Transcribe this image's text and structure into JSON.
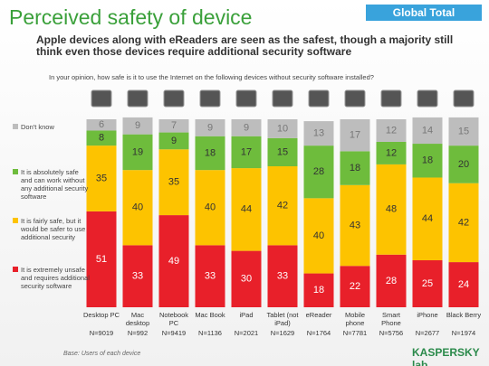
{
  "header": {
    "badge": "Global Total",
    "title": "Perceived safety of device",
    "subtitle": "Apple devices along with eReaders are seen as the safest, though a majority still think even those devices require additional security software",
    "question": "In your opinion, how safe is it to use the Internet on the following devices without security software installed?"
  },
  "footer": {
    "base": "Base: Users of each device",
    "logo": "KASPERSKY lab"
  },
  "chart_data": {
    "type": "stacked-bar",
    "categories": [
      "Desktop PC",
      "Mac desktop",
      "Notebook PC",
      "Mac Book",
      "iPad",
      "Tablet (not iPad)",
      "eReader",
      "Mobile phone",
      "Smart Phone",
      "iPhone",
      "Black Berry"
    ],
    "sample_sizes": [
      "N=9019",
      "N=992",
      "N=9419",
      "N=1136",
      "N=2021",
      "N=1629",
      "N=1764",
      "N=7781",
      "N=5756",
      "N=2677",
      "N=1974"
    ],
    "ylim": [
      0,
      100
    ],
    "series": [
      {
        "name": "It is extremely unsafe and requires additional security software",
        "color": "#e8202a",
        "values": [
          51,
          33,
          49,
          33,
          30,
          33,
          18,
          22,
          28,
          25,
          24
        ]
      },
      {
        "name": "It is fairly safe, but it would be safer to use additional security",
        "color": "#fdc300",
        "values": [
          35,
          40,
          35,
          40,
          44,
          42,
          40,
          43,
          48,
          44,
          42
        ]
      },
      {
        "name": "It is absolutely safe and can work without any additional security software",
        "color": "#6ebc3c",
        "values": [
          8,
          19,
          9,
          18,
          17,
          15,
          28,
          18,
          12,
          18,
          20
        ]
      },
      {
        "name": "Don't know",
        "color": "#bdbdbd",
        "values": [
          6,
          9,
          7,
          9,
          9,
          10,
          13,
          17,
          12,
          14,
          15
        ]
      }
    ]
  }
}
